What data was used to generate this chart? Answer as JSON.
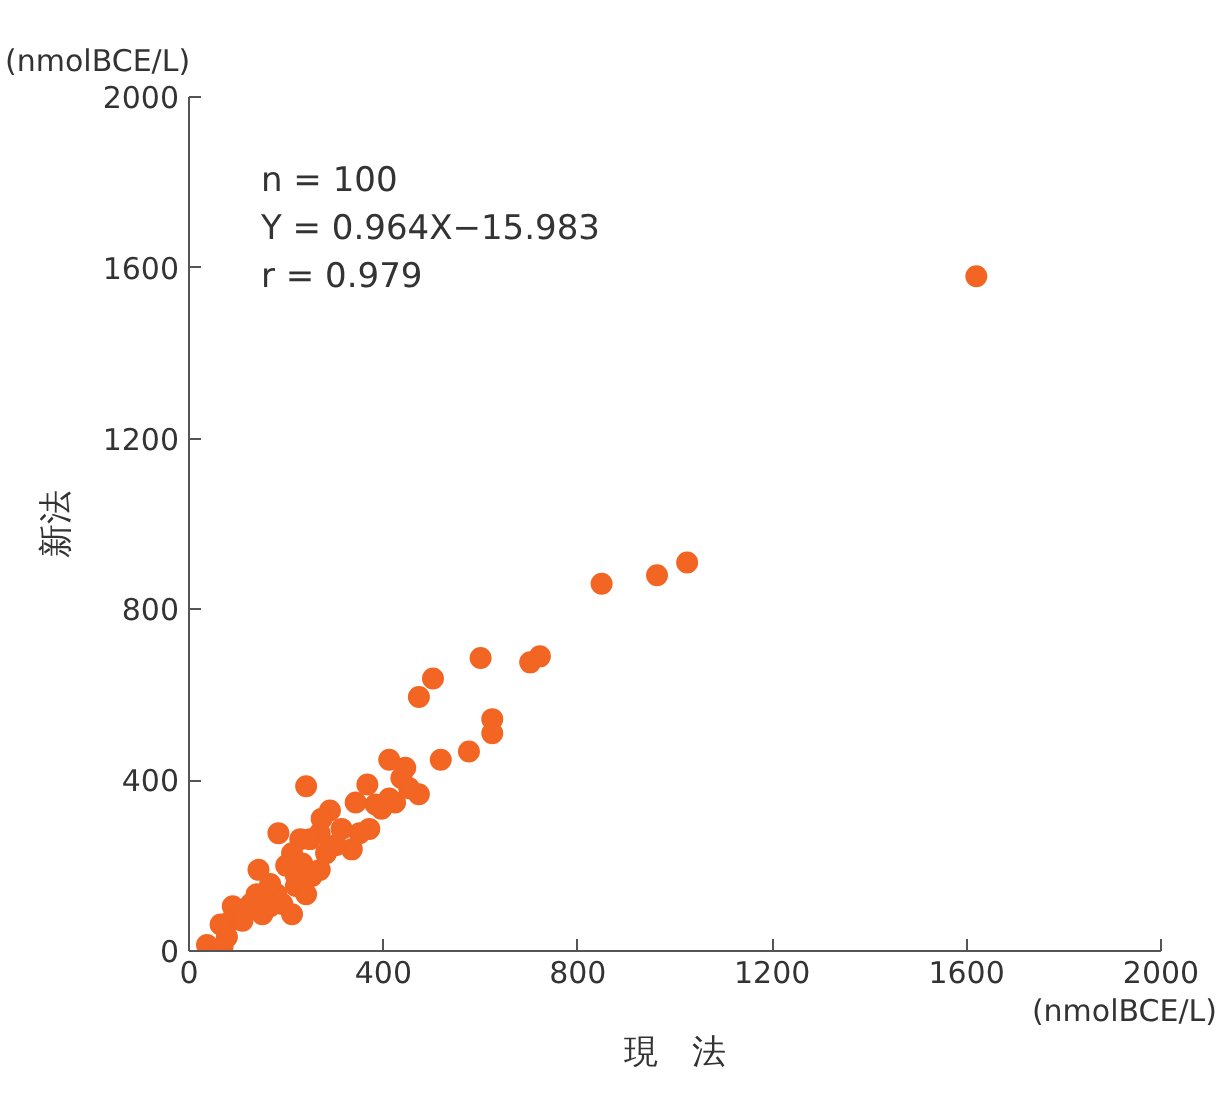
{
  "chart_data": {
    "type": "scatter",
    "xlabel": "現　法",
    "ylabel": "新法",
    "annotations": [
      "n = 100\nY = 0.964X−15.983\n r = 0.979",
      "(nmolBCE/L)",
      "(nmolBCE/L)"
    ],
    "xlim": [
      0,
      2000
    ],
    "ylim": [
      0,
      2000
    ],
    "xticks": [
      0,
      400,
      800,
      1200,
      1600,
      2000
    ],
    "yticks": [
      0,
      400,
      800,
      1200,
      1600,
      2000
    ],
    "grid": false,
    "marker": "circle",
    "color": "#f26522",
    "x": [
      1620,
      1025,
      963,
      849,
      600,
      722,
      702,
      502,
      473,
      624,
      624,
      576,
      518,
      412,
      445,
      437,
      473,
      367,
      241,
      343,
      424,
      396,
      290,
      371,
      335,
      314,
      184,
      269,
      249,
      229,
      282,
      212,
      253,
      143,
      200,
      233,
      220,
      192,
      180,
      167,
      139,
      127,
      90,
      86,
      110,
      65,
      78,
      37,
      69,
      151,
      212,
      241,
      269,
      220,
      302,
      273,
      351,
      384,
      453,
      412,
      167
    ],
    "values": [
      1580,
      910,
      880,
      860,
      686,
      690,
      676,
      638,
      595,
      543,
      510,
      467,
      448,
      448,
      429,
      405,
      367,
      390,
      386,
      348,
      348,
      333,
      329,
      286,
      238,
      286,
      276,
      276,
      262,
      262,
      229,
      229,
      176,
      190,
      200,
      205,
      152,
      110,
      133,
      157,
      133,
      110,
      105,
      71,
      71,
      62,
      33,
      14,
      10,
      86,
      86,
      133,
      190,
      176,
      248,
      310,
      276,
      343,
      381,
      357,
      105
    ]
  }
}
